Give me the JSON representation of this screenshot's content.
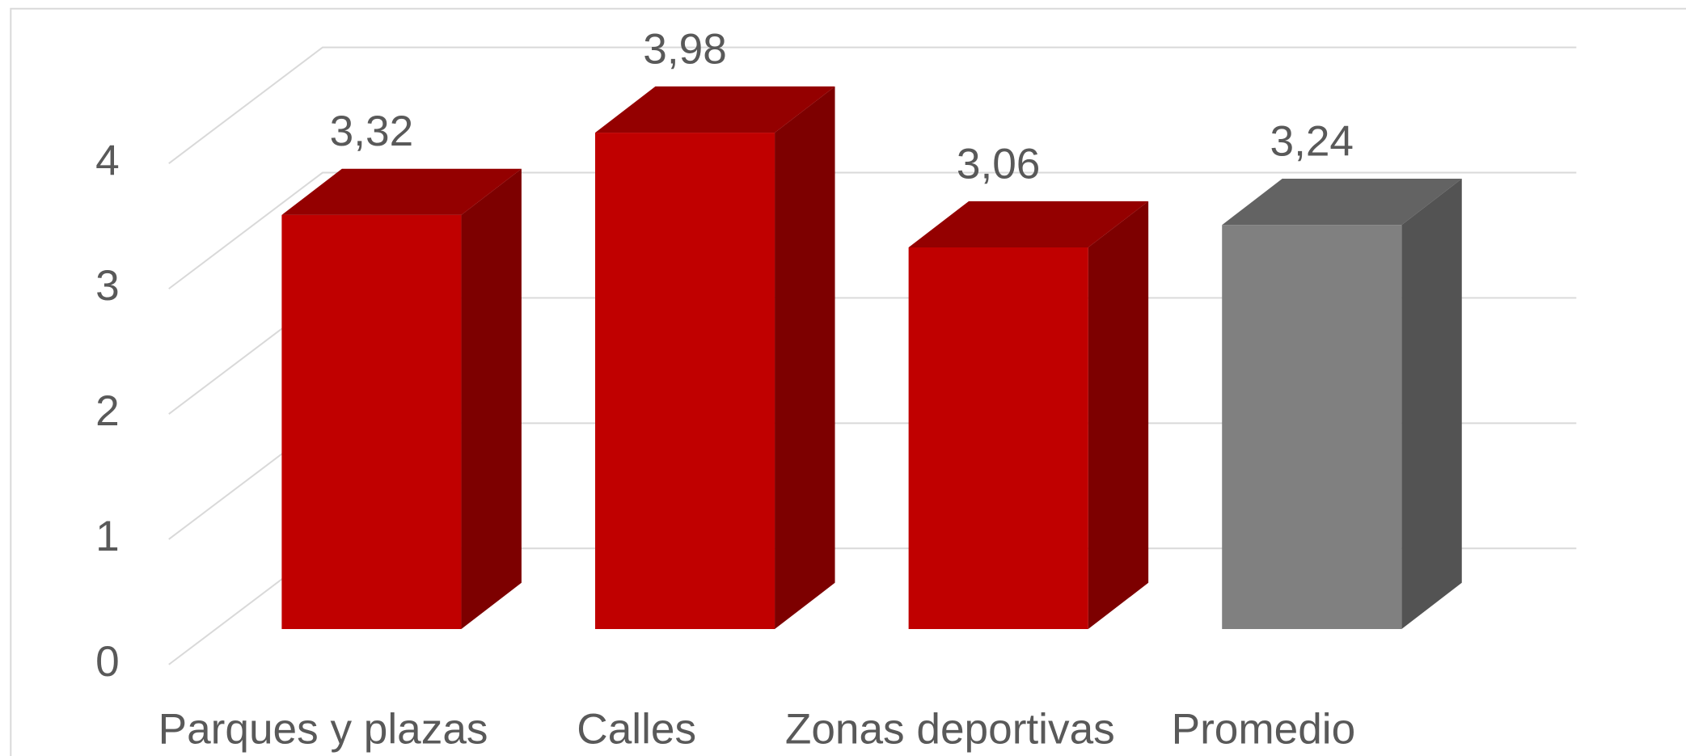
{
  "chart_data": {
    "type": "bar3d",
    "categories": [
      "Parques y plazas",
      "Calles",
      "Zonas deportivas",
      "Promedio"
    ],
    "values": [
      3.32,
      3.98,
      3.06,
      3.24
    ],
    "value_labels": [
      "3,32",
      "3,98",
      "3,06",
      "3,24"
    ],
    "colors": [
      "#c00000",
      "#c00000",
      "#c00000",
      "#808080"
    ],
    "ylim": [
      0,
      4
    ],
    "yticks": [
      0,
      1,
      2,
      3,
      4
    ],
    "grid": true
  }
}
